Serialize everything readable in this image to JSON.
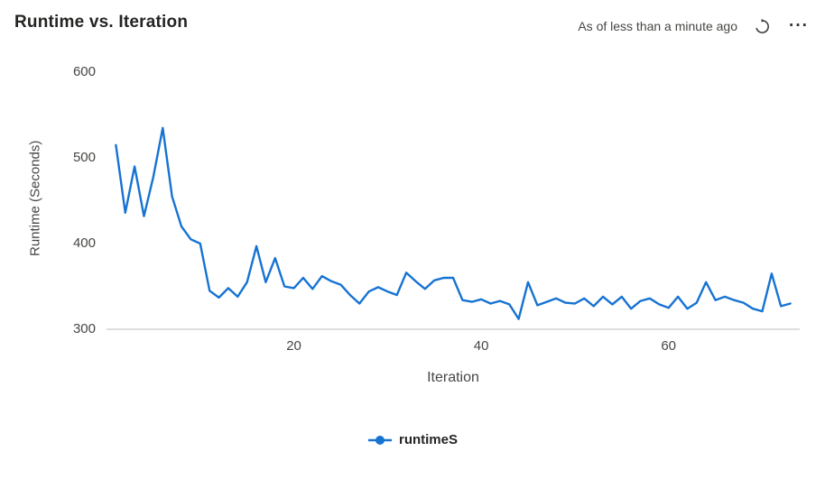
{
  "header": {
    "title": "Runtime vs. Iteration",
    "as_of_text": "As of less than a minute ago",
    "more_label": "···"
  },
  "colors": {
    "line": "#1673d2",
    "title_text": "#252423",
    "secondary_text": "#484644",
    "axis_line": "#d6d4d2",
    "icon": "#3b3a39"
  },
  "chart_data": {
    "type": "line",
    "title": "Runtime vs. Iteration",
    "xlabel": "Iteration",
    "ylabel": "Runtime (Seconds)",
    "xlim": [
      0,
      74
    ],
    "ylim": [
      300,
      600
    ],
    "x_ticks": [
      20,
      40,
      60
    ],
    "y_ticks": [
      300,
      400,
      500,
      600
    ],
    "grid": false,
    "legend_position": "bottom",
    "series": [
      {
        "name": "runtimeS",
        "x": [
          1,
          2,
          3,
          4,
          5,
          6,
          7,
          8,
          9,
          10,
          11,
          12,
          13,
          14,
          15,
          16,
          17,
          18,
          19,
          20,
          21,
          22,
          23,
          24,
          25,
          26,
          27,
          28,
          29,
          30,
          31,
          32,
          33,
          34,
          35,
          36,
          37,
          38,
          39,
          40,
          41,
          42,
          43,
          44,
          45,
          46,
          47,
          48,
          49,
          50,
          51,
          52,
          53,
          54,
          55,
          56,
          57,
          58,
          59,
          60,
          61,
          62,
          63,
          64,
          65,
          66,
          67,
          68,
          69,
          70,
          71,
          72,
          73
        ],
        "y": [
          515,
          436,
          490,
          432,
          478,
          535,
          455,
          420,
          405,
          400,
          345,
          337,
          348,
          338,
          355,
          397,
          355,
          383,
          350,
          348,
          360,
          347,
          362,
          356,
          352,
          340,
          330,
          344,
          349,
          344,
          340,
          366,
          356,
          347,
          357,
          360,
          360,
          334,
          332,
          335,
          330,
          333,
          329,
          312,
          355,
          328,
          332,
          336,
          331,
          330,
          336,
          327,
          338,
          329,
          338,
          324,
          333,
          336,
          329,
          325,
          338,
          324,
          331,
          355,
          334,
          338,
          334,
          331,
          324,
          321,
          365,
          327,
          330
        ]
      }
    ]
  }
}
